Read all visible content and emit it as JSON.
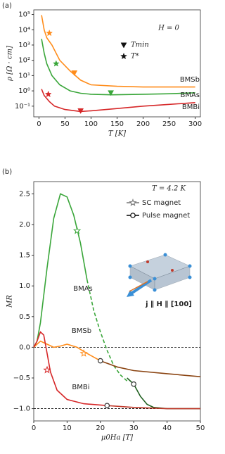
{
  "chart_data": [
    {
      "type": "line",
      "panel_label": "(a)",
      "y_label": "ρ [Ω · cm]",
      "x_label": "T [K]",
      "annotation": "H = 0",
      "log_y": true,
      "xlim": [
        -10,
        310
      ],
      "ylim": [
        0.02,
        200000
      ],
      "xticks": [
        0,
        50,
        100,
        150,
        200,
        250,
        300
      ],
      "yticks": [
        {
          "value": 0.1,
          "label": "10⁻¹"
        },
        {
          "value": 1,
          "label": "10⁰"
        },
        {
          "value": 10,
          "label": "10¹"
        },
        {
          "value": 100,
          "label": "10²"
        },
        {
          "value": 1000,
          "label": "10³"
        },
        {
          "value": 10000,
          "label": "10⁴"
        },
        {
          "value": 100000,
          "label": "10⁵"
        }
      ],
      "series": [
        {
          "name": "BMSb",
          "color": "#ff8c1a",
          "segments": [
            {
              "x": [
                5,
                10,
                15,
                25,
                40,
                60,
                80,
                100,
                150,
                200,
                300
              ],
              "values": [
                90000,
                10000,
                3000,
                1000,
                100,
                20,
                5,
                2.5,
                2,
                1.8,
                1.8
              ],
              "color": "#ff8c1a",
              "dashed": false
            }
          ],
          "markers": [
            {
              "x": 20,
              "y": 6000,
              "shape": "star"
            },
            {
              "x": 68,
              "y": 15,
              "shape": "triangle"
            }
          ]
        },
        {
          "name": "BMAs",
          "color": "#3aa63a",
          "segments": [
            {
              "x": [
                5,
                10,
                15,
                25,
                40,
                60,
                80,
                100,
                140,
                200,
                250,
                300
              ],
              "values": [
                2500,
                300,
                60,
                10,
                2.5,
                1,
                0.7,
                0.6,
                0.55,
                0.6,
                0.65,
                0.75
              ],
              "color": "#3aa63a",
              "dashed": false
            }
          ],
          "markers": [
            {
              "x": 33,
              "y": 60,
              "shape": "star"
            },
            {
              "x": 138,
              "y": 0.75,
              "shape": "triangle"
            }
          ]
        },
        {
          "name": "BMBi",
          "color": "#d62728",
          "segments": [
            {
              "x": [
                5,
                10,
                20,
                30,
                50,
                80,
                100,
                150,
                200,
                250,
                300
              ],
              "values": [
                1.3,
                0.5,
                0.2,
                0.1,
                0.06,
                0.045,
                0.05,
                0.07,
                0.1,
                0.13,
                0.17
              ],
              "color": "#d62728",
              "dashed": false
            }
          ],
          "markers": [
            {
              "x": 18,
              "y": 0.6,
              "shape": "star"
            },
            {
              "x": 80,
              "y": 0.05,
              "shape": "triangle"
            }
          ]
        }
      ],
      "legend": [
        {
          "name": "Tmin",
          "shape": "triangle"
        },
        {
          "name": "T*",
          "shape": "star"
        }
      ]
    },
    {
      "type": "line",
      "panel_label": "(b)",
      "y_label": "MR",
      "x_label": "μ0Ha [T]",
      "annotation": "T = 4.2 K",
      "note": "j ∥ H ∥ [100]",
      "log_y": false,
      "xlim": [
        0,
        50
      ],
      "ylim": [
        -1.2,
        2.7
      ],
      "xticks": [
        0,
        10,
        20,
        30,
        40,
        50
      ],
      "yticks": [
        {
          "value": -1,
          "label": "−1.0"
        },
        {
          "value": -0.5,
          "label": "−0.5"
        },
        {
          "value": 0,
          "label": "0.0"
        },
        0.5,
        {
          "value": 1,
          "label": "1.0"
        },
        1.5,
        {
          "value": 2,
          "label": "2.0"
        },
        2.5
      ],
      "reference_lines": [
        0,
        -1
      ],
      "series": [
        {
          "name": "BMAs",
          "color": "#3aa63a",
          "segments": [
            {
              "x": [
                0,
                1,
                2,
                4,
                6,
                8,
                10,
                12,
                14,
                16
              ],
              "values": [
                0,
                0.1,
                0.4,
                1.3,
                2.1,
                2.5,
                2.45,
                2.15,
                1.7,
                1.1
              ],
              "color": "#3aa63a",
              "dashed": false
            },
            {
              "x": [
                16,
                18,
                20,
                22,
                24,
                26,
                28
              ],
              "values": [
                1.1,
                0.6,
                0.25,
                -0.05,
                -0.3,
                -0.45,
                -0.55
              ],
              "color": "#3aa63a",
              "dashed": true
            },
            {
              "x": [
                28,
                30,
                32,
                34,
                36,
                40,
                50
              ],
              "values": [
                -0.5,
                -0.6,
                -0.8,
                -0.93,
                -0.98,
                -1,
                -1
              ],
              "color": "#1e5e1e",
              "dashed": false
            }
          ],
          "markers": [
            {
              "x": 13,
              "y": 1.9,
              "shape": "star"
            },
            {
              "x": 30,
              "y": -0.6,
              "shape": "circle"
            }
          ]
        },
        {
          "name": "BMSb",
          "color": "#ff8c1a",
          "segments": [
            {
              "x": [
                0,
                2,
                4,
                6,
                8,
                10,
                13,
                16,
                20
              ],
              "values": [
                0,
                0.1,
                0.05,
                0,
                0.02,
                0.05,
                0,
                -0.1,
                -0.22
              ],
              "color": "#ff8c1a",
              "dashed": false
            },
            {
              "x": [
                20,
                25,
                30,
                40,
                50
              ],
              "values": [
                -0.22,
                -0.32,
                -0.38,
                -0.43,
                -0.48
              ],
              "color": "#8b4513",
              "dashed": false
            }
          ],
          "markers": [
            {
              "x": 15,
              "y": -0.1,
              "shape": "star"
            },
            {
              "x": 20,
              "y": -0.22,
              "shape": "circle"
            }
          ]
        },
        {
          "name": "BMBi",
          "color": "#d62728",
          "segments": [
            {
              "x": [
                0,
                1,
                2,
                3,
                4,
                5,
                7,
                10,
                15,
                22
              ],
              "values": [
                0,
                0.1,
                0.25,
                0.2,
                -0.1,
                -0.4,
                -0.7,
                -0.85,
                -0.92,
                -0.95
              ],
              "color": "#d62728",
              "dashed": false
            },
            {
              "x": [
                22,
                30,
                40,
                50
              ],
              "values": [
                -0.95,
                -0.98,
                -1,
                -1
              ],
              "color": "#c0392b",
              "dashed": false
            }
          ],
          "markers": [
            {
              "x": 4,
              "y": -0.37,
              "shape": "star"
            },
            {
              "x": 22,
              "y": -0.95,
              "shape": "circle"
            }
          ]
        }
      ],
      "legend": [
        {
          "name": "SC magnet",
          "shape": "star",
          "color": "#777777"
        },
        {
          "name": "Pulse magnet",
          "shape": "circle",
          "color": "#000000"
        }
      ]
    }
  ]
}
